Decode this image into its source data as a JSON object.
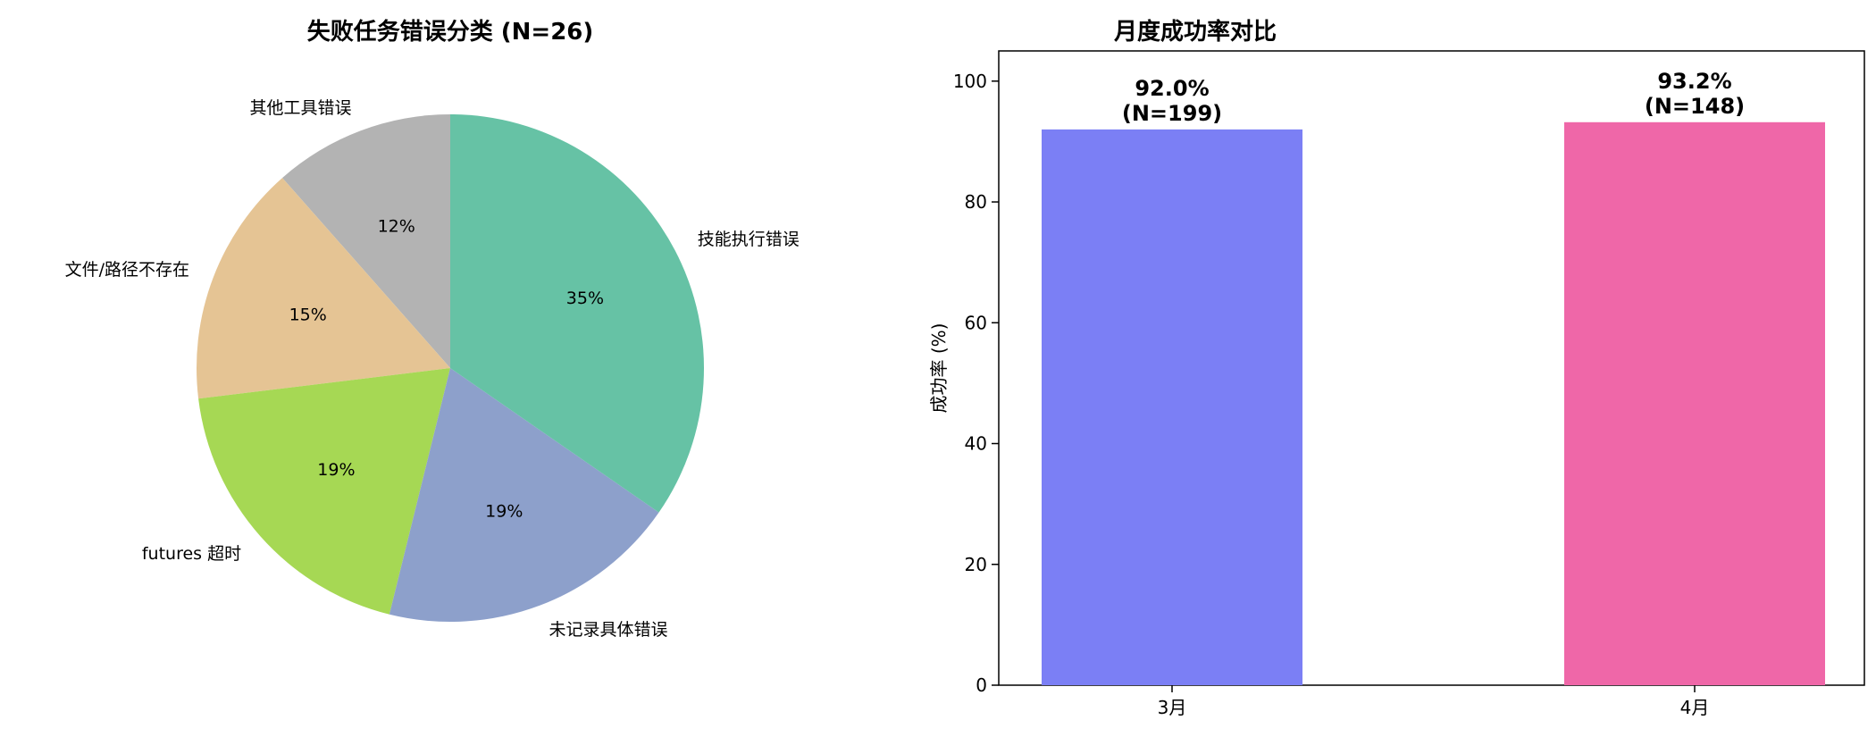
{
  "chart_data": [
    {
      "type": "pie",
      "title": "失败任务错误分类 (N=26)",
      "slices": [
        {
          "label": "其他工具错误",
          "pct_label": "12%",
          "value": 11.5,
          "color": "#b3b3b3"
        },
        {
          "label": "文件/路径不存在",
          "pct_label": "15%",
          "value": 15.4,
          "color": "#e5c494"
        },
        {
          "label": "futures 超时",
          "pct_label": "19%",
          "value": 19.2,
          "color": "#a6d854"
        },
        {
          "label": "未记录具体错误",
          "pct_label": "19%",
          "value": 19.2,
          "color": "#8da0cb"
        },
        {
          "label": "技能执行错误",
          "pct_label": "35%",
          "value": 34.6,
          "color": "#66c2a5"
        }
      ]
    },
    {
      "type": "bar",
      "title": "月度成功率对比",
      "ylabel": "成功率 (%)",
      "categories": [
        "3月",
        "4月"
      ],
      "values": [
        92.0,
        93.2
      ],
      "value_labels": [
        "92.0%",
        "93.2%"
      ],
      "n_labels": [
        "(N=199)",
        "(N=148)"
      ],
      "colors": [
        "#7b7ff5",
        "#ef67a8"
      ],
      "ylim": [
        0,
        105
      ],
      "yticks": [
        0,
        20,
        40,
        60,
        80,
        100
      ]
    }
  ]
}
